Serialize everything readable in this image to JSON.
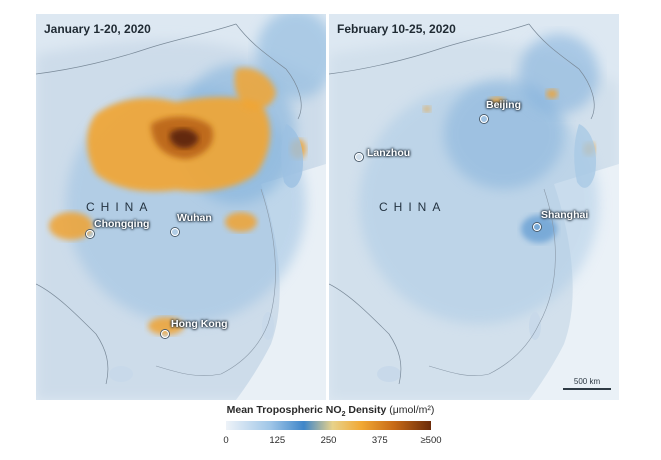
{
  "panels": [
    {
      "title": "January 1-20, 2020",
      "country_label": "CHINA",
      "cities": [
        "Chongqing",
        "Wuhan",
        "Hong Kong"
      ]
    },
    {
      "title": "February 10-25, 2020",
      "country_label": "CHINA",
      "cities": [
        "Lanzhou",
        "Beijing",
        "Shanghai"
      ],
      "scale_bar": "500 km"
    }
  ],
  "legend": {
    "title_main": "Mean Tropospheric NO",
    "title_sub": "2",
    "title_rest": " Density",
    "unit": "(μmol/m²)",
    "ticks": [
      "0",
      "125",
      "250",
      "375",
      "≥500"
    ],
    "tick_values": [
      0,
      125,
      250,
      375,
      500
    ],
    "range": [
      0,
      500
    ],
    "colors": [
      "#eef3f8",
      "#3f86c9",
      "#f1a834",
      "#6b2b0a"
    ]
  }
}
